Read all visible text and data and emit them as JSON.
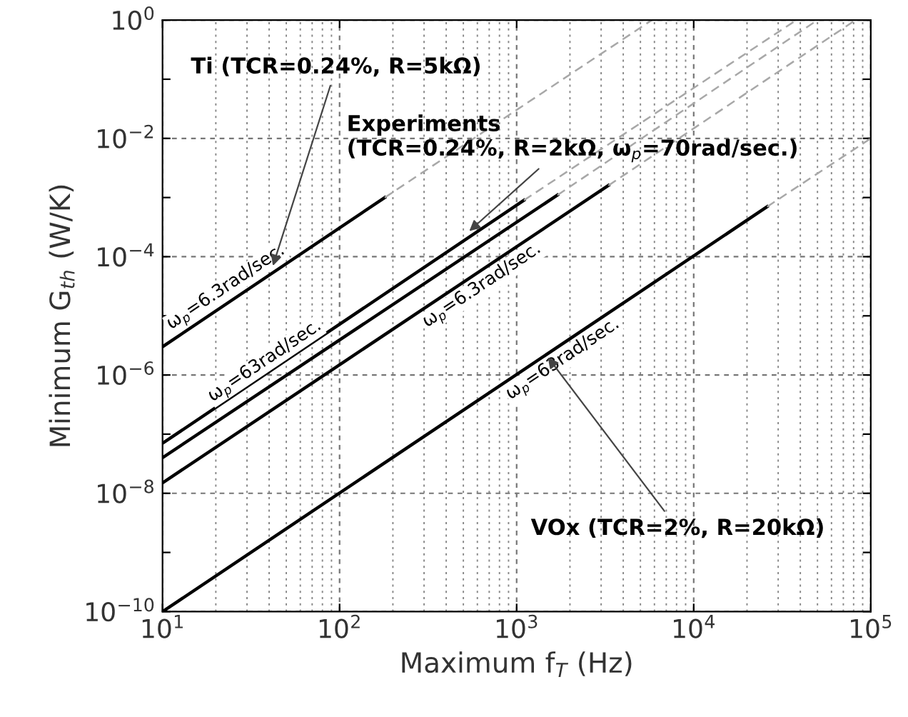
{
  "chart_data": {
    "type": "line",
    "xlabel": "Maximum f$_{T}$ (Hz)",
    "ylabel": "Minimum G$_{th}$ (W/K)",
    "log": "xy",
    "grid": true,
    "xlim": [
      10,
      100000
    ],
    "ylim": [
      1e-10,
      1
    ],
    "xticks": [
      {
        "value": 10,
        "label": "10$^{1}$"
      },
      {
        "value": 100,
        "label": "10$^{2}$"
      },
      {
        "value": 1000,
        "label": "10$^{3}$"
      },
      {
        "value": 10000,
        "label": "10$^{4}$"
      },
      {
        "value": 100000,
        "label": "10$^{5}$"
      }
    ],
    "yticks": [
      {
        "value": 1e-10,
        "label": "10$^{−10}$"
      },
      {
        "value": 1e-09,
        "label": null
      },
      {
        "value": 1e-08,
        "label": "10$^{−8}$"
      },
      {
        "value": 1e-07,
        "label": null
      },
      {
        "value": 1e-06,
        "label": "10$^{−6}$"
      },
      {
        "value": 1e-05,
        "label": null
      },
      {
        "value": 0.0001,
        "label": "10$^{−4}$"
      },
      {
        "value": 0.001,
        "label": null
      },
      {
        "value": 0.01,
        "label": "10$^{−2}$"
      },
      {
        "value": 0.1,
        "label": null
      },
      {
        "value": 1,
        "label": "10$^{0}$"
      }
    ],
    "series": [
      {
        "name": "ω$_{p}$=6.3rad/sec.",
        "color": "#000000",
        "line_style": "solid",
        "x": [
          10,
          180
        ],
        "values": [
          3e-06,
          0.001
        ]
      },
      {
        "name": "ω$_{p}$=63rad/sec.",
        "color": "#000000",
        "line_style": "solid",
        "x": [
          10,
          1100
        ],
        "values": [
          7e-08,
          0.0009
        ]
      },
      {
        "color": "#000000",
        "line_style": "solid",
        "x": [
          10,
          1700
        ],
        "values": [
          4e-08,
          0.0011
        ]
      },
      {
        "name": "ω$_{p}$=6.3rad/sec.",
        "color": "#000000",
        "line_style": "solid",
        "x": [
          10,
          3300
        ],
        "values": [
          1.5e-08,
          0.0016
        ]
      },
      {
        "name": "ω$_{p}$=63rad/sec.",
        "color": "#000000",
        "line_style": "solid",
        "x": [
          10,
          26000
        ],
        "values": [
          1e-10,
          0.0007
        ]
      },
      {
        "color": "#a8a8a8",
        "line_style": "dashed",
        "x": [
          180,
          5800
        ],
        "values": [
          0.001,
          1
        ]
      },
      {
        "color": "#a8a8a8",
        "line_style": "dashed",
        "x": [
          1100,
          38000
        ],
        "values": [
          0.0009,
          1
        ]
      },
      {
        "color": "#a8a8a8",
        "line_style": "dashed",
        "x": [
          1700,
          50000
        ],
        "values": [
          0.0011,
          1
        ]
      },
      {
        "color": "#a8a8a8",
        "line_style": "dashed",
        "x": [
          3300,
          82000
        ],
        "values": [
          0.0016,
          1
        ]
      },
      {
        "color": "#a8a8a8",
        "line_style": "dashed",
        "x": [
          26000,
          100000
        ],
        "values": [
          0.0007,
          0.01
        ]
      }
    ],
    "annotations": [
      {
        "text": "Ti (TCR=0.24%, R=5kΩ)",
        "x": 42,
        "y": 7e-05
      },
      {
        "text": "Experiments\n(TCR=0.24%, R=2kΩ, ω$_{p}$=70rad/sec.)",
        "x": 540,
        "y": 0.00027
      },
      {
        "text": "VOx (TCR=2%, R=20kΩ)",
        "x": 1500,
        "y": 2e-06
      }
    ]
  }
}
